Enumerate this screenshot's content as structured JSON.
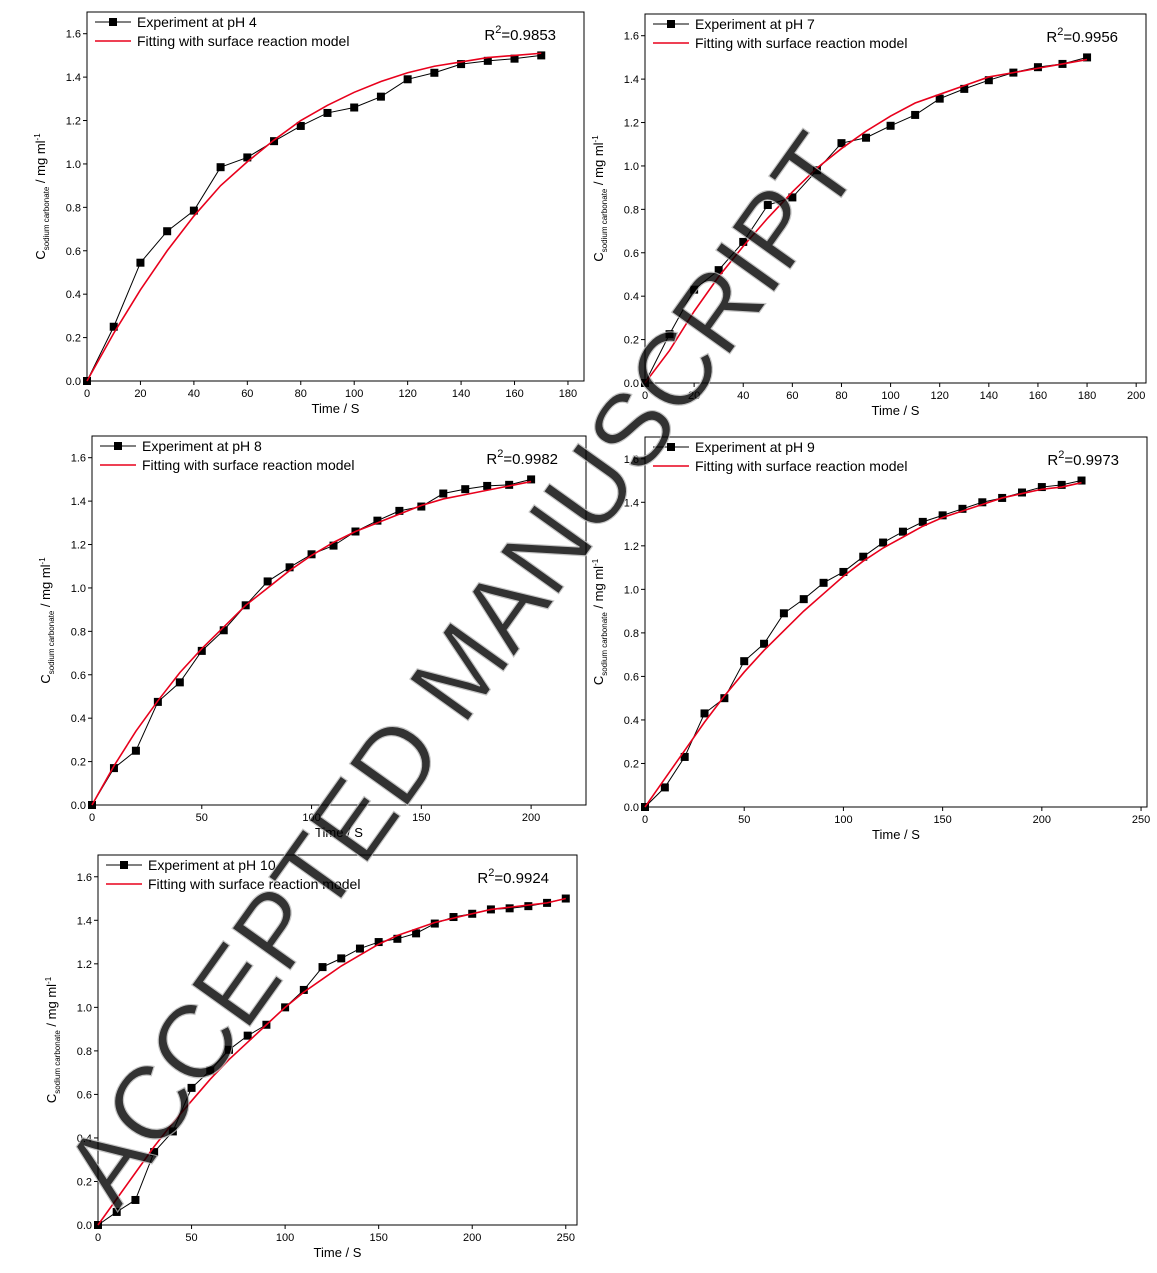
{
  "chart_data": [
    {
      "type": "line",
      "xlabel": "Time / S",
      "ylabel": {
        "main": "C",
        "sub": "sodium carbonate",
        "unit": " / mg ml",
        "sup": "-1"
      },
      "annotation": {
        "main": "R",
        "sup": "2",
        "rest": "=0.9853"
      },
      "x": [
        0,
        10,
        20,
        30,
        40,
        50,
        60,
        70,
        80,
        90,
        100,
        110,
        120,
        130,
        140,
        150,
        160,
        170
      ],
      "series": [
        {
          "name": "Experiment at pH 4",
          "color": "#000000",
          "marker": "square",
          "values": [
            0,
            0.25,
            0.545,
            0.69,
            0.785,
            0.985,
            1.03,
            1.105,
            1.175,
            1.235,
            1.26,
            1.31,
            1.39,
            1.42,
            1.46,
            1.475,
            1.485,
            1.5
          ]
        },
        {
          "name": "Fitting with surface reaction model",
          "color": "#e8001c",
          "values": [
            0,
            0.22,
            0.42,
            0.6,
            0.76,
            0.9,
            1.01,
            1.11,
            1.2,
            1.27,
            1.33,
            1.38,
            1.42,
            1.45,
            1.47,
            1.49,
            1.5,
            1.51
          ]
        }
      ],
      "xlim": [
        0,
        186
      ],
      "ylim": [
        0,
        1.7
      ],
      "xticks": [
        0,
        20,
        40,
        60,
        80,
        100,
        120,
        140,
        160,
        180
      ],
      "yticks": [
        {
          "value": 0,
          "label": "0.0"
        },
        {
          "value": 0.2,
          "label": "0.2"
        },
        {
          "value": 0.4,
          "label": "0.4"
        },
        {
          "value": 0.6,
          "label": "0.6"
        },
        {
          "value": 0.8,
          "label": "0.8"
        },
        {
          "value": 1,
          "label": "1.0"
        },
        {
          "value": 1.2,
          "label": "1.2"
        },
        {
          "value": 1.4,
          "label": "1.4"
        },
        {
          "value": 1.6,
          "label": "1.6"
        }
      ],
      "legend": "upper left"
    },
    {
      "type": "line",
      "xlabel": "Time / S",
      "ylabel": {
        "main": "C",
        "sub": "sodium carbonate",
        "unit": " / mg ml",
        "sup": "-1"
      },
      "annotation": {
        "main": "R",
        "sup": "2",
        "rest": "=0.9956"
      },
      "x": [
        0,
        10,
        20,
        30,
        40,
        50,
        60,
        70,
        80,
        90,
        100,
        110,
        120,
        130,
        140,
        150,
        160,
        170,
        180
      ],
      "series": [
        {
          "name": "Experiment at pH 7",
          "color": "#000000",
          "marker": "square",
          "values": [
            0,
            0.225,
            0.43,
            0.52,
            0.65,
            0.82,
            0.855,
            0.98,
            1.105,
            1.13,
            1.185,
            1.235,
            1.31,
            1.355,
            1.395,
            1.43,
            1.455,
            1.47,
            1.5
          ]
        },
        {
          "name": "Fitting with surface reaction model",
          "color": "#e8001c",
          "values": [
            0,
            0.15,
            0.33,
            0.49,
            0.63,
            0.76,
            0.88,
            0.99,
            1.08,
            1.16,
            1.23,
            1.29,
            1.33,
            1.37,
            1.41,
            1.43,
            1.45,
            1.47,
            1.49
          ]
        }
      ],
      "xlim": [
        0,
        204
      ],
      "ylim": [
        0,
        1.7
      ],
      "xticks": [
        0,
        20,
        40,
        60,
        80,
        100,
        120,
        140,
        160,
        180,
        200
      ],
      "yticks": [
        {
          "value": 0,
          "label": "0.0"
        },
        {
          "value": 0.2,
          "label": "0.2"
        },
        {
          "value": 0.4,
          "label": "0.4"
        },
        {
          "value": 0.6,
          "label": "0.6"
        },
        {
          "value": 0.8,
          "label": "0.8"
        },
        {
          "value": 1,
          "label": "1.0"
        },
        {
          "value": 1.2,
          "label": "1.2"
        },
        {
          "value": 1.4,
          "label": "1.4"
        },
        {
          "value": 1.6,
          "label": "1.6"
        }
      ],
      "legend": "upper left"
    },
    {
      "type": "line",
      "xlabel": "Time / S",
      "ylabel": {
        "main": "C",
        "sub": "sodium carbonate",
        "unit": " / mg ml",
        "sup": "-1"
      },
      "annotation": {
        "main": "R",
        "sup": "2",
        "rest": "=0.9982"
      },
      "x": [
        0,
        10,
        20,
        30,
        40,
        50,
        60,
        70,
        80,
        90,
        100,
        110,
        120,
        130,
        140,
        150,
        160,
        170,
        180,
        190,
        200
      ],
      "series": [
        {
          "name": "Experiment at pH 8",
          "color": "#000000",
          "marker": "square",
          "values": [
            0,
            0.17,
            0.25,
            0.475,
            0.565,
            0.71,
            0.805,
            0.92,
            1.03,
            1.095,
            1.155,
            1.195,
            1.26,
            1.31,
            1.355,
            1.375,
            1.435,
            1.455,
            1.47,
            1.475,
            1.5
          ]
        },
        {
          "name": "Fitting with surface reaction model",
          "color": "#e8001c",
          "values": [
            0,
            0.18,
            0.34,
            0.48,
            0.61,
            0.72,
            0.82,
            0.92,
            1,
            1.08,
            1.15,
            1.21,
            1.26,
            1.3,
            1.34,
            1.38,
            1.41,
            1.43,
            1.45,
            1.47,
            1.49
          ]
        }
      ],
      "xlim": [
        0,
        225
      ],
      "ylim": [
        0,
        1.7
      ],
      "xticks": [
        0,
        50,
        100,
        150,
        200
      ],
      "yticks": [
        {
          "value": 0,
          "label": "0.0"
        },
        {
          "value": 0.2,
          "label": "0.2"
        },
        {
          "value": 0.4,
          "label": "0.4"
        },
        {
          "value": 0.6,
          "label": "0.6"
        },
        {
          "value": 0.8,
          "label": "0.8"
        },
        {
          "value": 1,
          "label": "1.0"
        },
        {
          "value": 1.2,
          "label": "1.2"
        },
        {
          "value": 1.4,
          "label": "1.4"
        },
        {
          "value": 1.6,
          "label": "1.6"
        }
      ],
      "legend": "upper left"
    },
    {
      "type": "line",
      "xlabel": "Time / S",
      "ylabel": {
        "main": "C",
        "sub": "sodium carbonate",
        "unit": " / mg ml",
        "sup": "-1"
      },
      "annotation": {
        "main": "R",
        "sup": "2",
        "rest": "=0.9973"
      },
      "x": [
        0,
        10,
        20,
        30,
        40,
        50,
        60,
        70,
        80,
        90,
        100,
        110,
        120,
        130,
        140,
        150,
        160,
        170,
        180,
        190,
        200,
        210,
        220
      ],
      "series": [
        {
          "name": "Experiment at pH 9",
          "color": "#000000",
          "marker": "square",
          "values": [
            0,
            0.09,
            0.23,
            0.43,
            0.5,
            0.67,
            0.75,
            0.89,
            0.955,
            1.03,
            1.08,
            1.15,
            1.215,
            1.265,
            1.31,
            1.34,
            1.37,
            1.4,
            1.42,
            1.445,
            1.47,
            1.48,
            1.5
          ]
        },
        {
          "name": "Fitting with surface reaction model",
          "color": "#e8001c",
          "values": [
            0,
            0.13,
            0.26,
            0.39,
            0.51,
            0.62,
            0.72,
            0.81,
            0.9,
            0.98,
            1.06,
            1.13,
            1.19,
            1.24,
            1.29,
            1.33,
            1.36,
            1.39,
            1.42,
            1.44,
            1.46,
            1.47,
            1.49
          ]
        }
      ],
      "xlim": [
        0,
        253
      ],
      "ylim": [
        0,
        1.7
      ],
      "xticks": [
        0,
        50,
        100,
        150,
        200,
        250
      ],
      "yticks": [
        {
          "value": 0,
          "label": "0.0"
        },
        {
          "value": 0.2,
          "label": "0.2"
        },
        {
          "value": 0.4,
          "label": "0.4"
        },
        {
          "value": 0.6,
          "label": "0.6"
        },
        {
          "value": 0.8,
          "label": "0.8"
        },
        {
          "value": 1,
          "label": "1.0"
        },
        {
          "value": 1.2,
          "label": "1.2"
        },
        {
          "value": 1.4,
          "label": "1.4"
        },
        {
          "value": 1.6,
          "label": "1.6"
        }
      ],
      "legend": "upper left"
    },
    {
      "type": "line",
      "xlabel": "Time / S",
      "ylabel": {
        "main": "C",
        "sub": "sodium carbonate",
        "unit": " / mg ml",
        "sup": "-1"
      },
      "annotation": {
        "main": "R",
        "sup": "2",
        "rest": "=0.9924"
      },
      "x": [
        0,
        10,
        20,
        30,
        40,
        50,
        60,
        70,
        80,
        90,
        100,
        110,
        120,
        130,
        140,
        150,
        160,
        170,
        180,
        190,
        200,
        210,
        220,
        230,
        240,
        250
      ],
      "series": [
        {
          "name": "Experiment at pH 10",
          "color": "#000000",
          "marker": "square",
          "values": [
            0,
            0.06,
            0.115,
            0.335,
            0.43,
            0.63,
            0.71,
            0.805,
            0.87,
            0.92,
            1,
            1.08,
            1.185,
            1.225,
            1.27,
            1.3,
            1.315,
            1.34,
            1.385,
            1.415,
            1.43,
            1.45,
            1.455,
            1.465,
            1.48,
            1.5
          ]
        },
        {
          "name": "Fitting with surface reaction model",
          "color": "#e8001c",
          "values": [
            0,
            0.12,
            0.24,
            0.36,
            0.47,
            0.57,
            0.67,
            0.76,
            0.84,
            0.92,
            1,
            1.07,
            1.13,
            1.19,
            1.24,
            1.29,
            1.33,
            1.36,
            1.39,
            1.41,
            1.43,
            1.45,
            1.46,
            1.47,
            1.48,
            1.5
          ]
        }
      ],
      "xlim": [
        0,
        256
      ],
      "ylim": [
        0,
        1.7
      ],
      "xticks": [
        0,
        50,
        100,
        150,
        200,
        250
      ],
      "yticks": [
        {
          "value": 0,
          "label": "0.0"
        },
        {
          "value": 0.2,
          "label": "0.2"
        },
        {
          "value": 0.4,
          "label": "0.4"
        },
        {
          "value": 0.6,
          "label": "0.6"
        },
        {
          "value": 0.8,
          "label": "0.8"
        },
        {
          "value": 1,
          "label": "1.0"
        },
        {
          "value": 1.2,
          "label": "1.2"
        },
        {
          "value": 1.4,
          "label": "1.4"
        },
        {
          "value": 1.6,
          "label": "1.6"
        }
      ],
      "legend": "upper left"
    }
  ],
  "watermark": "ACCEPTED MANUSCRIPT"
}
